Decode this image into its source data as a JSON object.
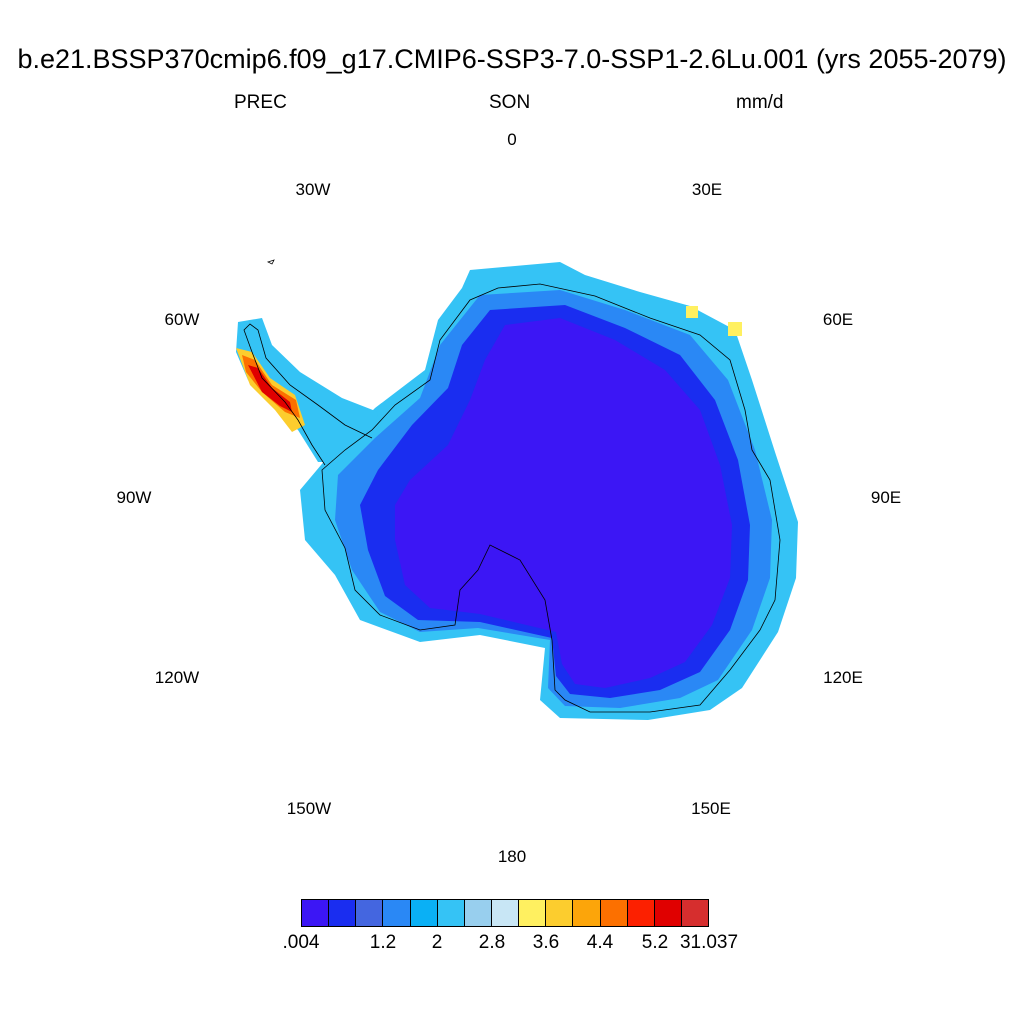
{
  "title": "b.e21.BSSP370cmip6.f09_g17.CMIP6-SSP3-7.0-SSP1-2.6Lu.001 (yrs 2055-2079)",
  "subtitle_left": "PREC",
  "subtitle_center": "SON",
  "subtitle_right": "mm/d",
  "longitude_labels": [
    "0",
    "30E",
    "60E",
    "90E",
    "120E",
    "150E",
    "180",
    "150W",
    "120W",
    "90W",
    "60W",
    "30W"
  ],
  "colorbar": {
    "colors": [
      "#3c16f5",
      "#1a2df0",
      "#4466e0",
      "#2a88f5",
      "#0ab0f5",
      "#35c3f5",
      "#98cfee",
      "#c8e6f5",
      "#fff060",
      "#fccd2e",
      "#fca50a",
      "#fc7000",
      "#fc2000",
      "#e00000",
      "#d62e2e"
    ],
    "labels": [
      ".004",
      "1.2",
      "2",
      "2.8",
      "3.6",
      "4.4",
      "5.2",
      "31.037"
    ]
  },
  "map_colors": {
    "interior": "#3c16f5",
    "inner_ring": "#1a2df0",
    "mid_ring": "#2a88f5",
    "outer_ring": "#35c3f5",
    "peninsula_high": "#e00000",
    "peninsula_mid": "#fc7000",
    "peninsula_low": "#fccd2e",
    "coast_yellow": "#fff060"
  }
}
